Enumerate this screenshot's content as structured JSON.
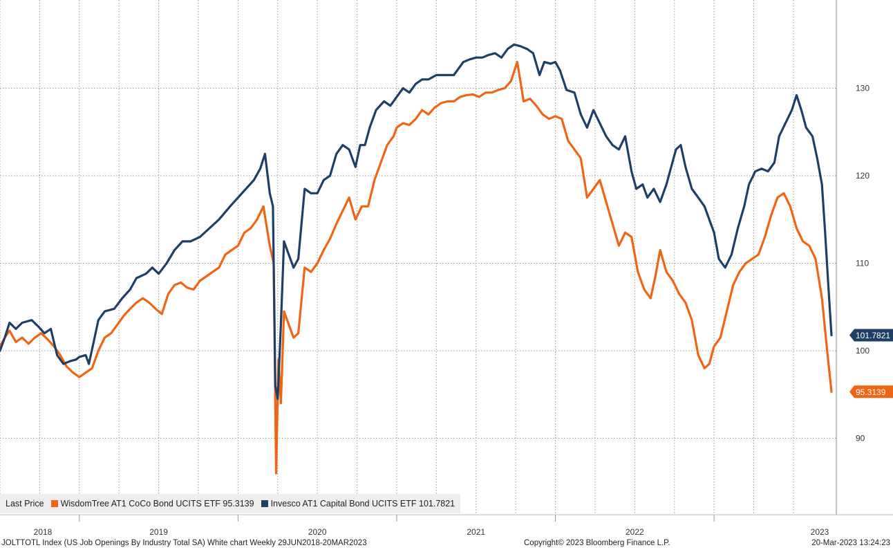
{
  "chart_data": {
    "type": "line",
    "x_range": [
      "2018-06-29",
      "2023-03-20"
    ],
    "ylim": [
      82,
      141
    ],
    "y_ticks": [
      90,
      100,
      110,
      120,
      130
    ],
    "x_year_labels": [
      "2018",
      "2019",
      "2020",
      "2021",
      "2022",
      "2023"
    ],
    "series": [
      {
        "name": "Invesco AT1 Capital Bond UCITS ETF",
        "color": "#1e3f66",
        "last_label": "101.7821",
        "points": [
          [
            2018.5,
            100.0
          ],
          [
            2018.53,
            101.5
          ],
          [
            2018.56,
            103.2
          ],
          [
            2018.6,
            102.5
          ],
          [
            2018.64,
            103.2
          ],
          [
            2018.7,
            103.5
          ],
          [
            2018.74,
            102.8
          ],
          [
            2018.78,
            102.0
          ],
          [
            2018.82,
            102.5
          ],
          [
            2018.86,
            99.5
          ],
          [
            2018.9,
            98.5
          ],
          [
            2018.94,
            98.8
          ],
          [
            2018.98,
            99.0
          ],
          [
            2019.0,
            99.3
          ],
          [
            2019.04,
            99.5
          ],
          [
            2019.06,
            98.5
          ],
          [
            2019.09,
            101.0
          ],
          [
            2019.12,
            103.5
          ],
          [
            2019.16,
            104.5
          ],
          [
            2019.22,
            104.8
          ],
          [
            2019.27,
            106.0
          ],
          [
            2019.32,
            107.0
          ],
          [
            2019.36,
            108.3
          ],
          [
            2019.42,
            108.8
          ],
          [
            2019.46,
            109.5
          ],
          [
            2019.5,
            108.8
          ],
          [
            2019.55,
            110.0
          ],
          [
            2019.6,
            111.5
          ],
          [
            2019.65,
            112.5
          ],
          [
            2019.7,
            112.5
          ],
          [
            2019.76,
            113.0
          ],
          [
            2019.82,
            114.0
          ],
          [
            2019.88,
            115.0
          ],
          [
            2019.95,
            116.5
          ],
          [
            2020.0,
            117.5
          ],
          [
            2020.05,
            118.5
          ],
          [
            2020.1,
            119.5
          ],
          [
            2020.14,
            120.8
          ],
          [
            2020.17,
            122.5
          ],
          [
            2020.2,
            118.0
          ],
          [
            2020.22,
            116.5
          ],
          [
            2020.235,
            96.0
          ],
          [
            2020.25,
            94.5
          ],
          [
            2020.27,
            103.0
          ],
          [
            2020.29,
            112.5
          ],
          [
            2020.32,
            111.0
          ],
          [
            2020.35,
            109.5
          ],
          [
            2020.38,
            110.5
          ],
          [
            2020.42,
            118.5
          ],
          [
            2020.46,
            118.0
          ],
          [
            2020.5,
            118.0
          ],
          [
            2020.54,
            119.5
          ],
          [
            2020.58,
            120.0
          ],
          [
            2020.62,
            122.5
          ],
          [
            2020.66,
            123.5
          ],
          [
            2020.7,
            123.0
          ],
          [
            2020.74,
            121.0
          ],
          [
            2020.77,
            123.5
          ],
          [
            2020.8,
            123.5
          ],
          [
            2020.83,
            125.5
          ],
          [
            2020.87,
            127.5
          ],
          [
            2020.92,
            128.5
          ],
          [
            2020.96,
            128.0
          ],
          [
            2021.0,
            129.0
          ],
          [
            2021.04,
            130.0
          ],
          [
            2021.08,
            129.5
          ],
          [
            2021.12,
            130.5
          ],
          [
            2021.16,
            131.0
          ],
          [
            2021.2,
            131.0
          ],
          [
            2021.25,
            131.5
          ],
          [
            2021.3,
            131.5
          ],
          [
            2021.36,
            131.5
          ],
          [
            2021.42,
            133.0
          ],
          [
            2021.46,
            133.3
          ],
          [
            2021.5,
            133.5
          ],
          [
            2021.54,
            133.5
          ],
          [
            2021.58,
            133.8
          ],
          [
            2021.62,
            134.0
          ],
          [
            2021.66,
            133.5
          ],
          [
            2021.7,
            134.5
          ],
          [
            2021.74,
            135.0
          ],
          [
            2021.78,
            134.8
          ],
          [
            2021.82,
            134.5
          ],
          [
            2021.86,
            134.0
          ],
          [
            2021.9,
            131.5
          ],
          [
            2021.93,
            133.0
          ],
          [
            2021.97,
            132.8
          ],
          [
            2022.0,
            133.0
          ],
          [
            2022.03,
            132.0
          ],
          [
            2022.07,
            129.8
          ],
          [
            2022.12,
            129.5
          ],
          [
            2022.16,
            127.0
          ],
          [
            2022.2,
            125.5
          ],
          [
            2022.24,
            127.5
          ],
          [
            2022.28,
            126.0
          ],
          [
            2022.32,
            124.5
          ],
          [
            2022.36,
            123.5
          ],
          [
            2022.4,
            123.0
          ],
          [
            2022.44,
            124.5
          ],
          [
            2022.48,
            120.5
          ],
          [
            2022.51,
            118.5
          ],
          [
            2022.55,
            119.0
          ],
          [
            2022.58,
            117.5
          ],
          [
            2022.62,
            118.5
          ],
          [
            2022.66,
            117.0
          ],
          [
            2022.7,
            119.0
          ],
          [
            2022.73,
            121.0
          ],
          [
            2022.76,
            123.0
          ],
          [
            2022.79,
            123.5
          ],
          [
            2022.82,
            121.0
          ],
          [
            2022.86,
            118.5
          ],
          [
            2022.9,
            117.5
          ],
          [
            2022.94,
            116.5
          ],
          [
            2022.97,
            115.0
          ],
          [
            2023.0,
            113.5
          ],
          [
            2023.03,
            110.5
          ],
          [
            2023.07,
            109.5
          ],
          [
            2023.11,
            111.0
          ],
          [
            2023.15,
            114.0
          ],
          [
            2023.19,
            116.5
          ],
          [
            2023.22,
            119.0
          ],
          [
            2023.26,
            120.5
          ],
          [
            2023.3,
            120.8
          ],
          [
            2023.34,
            120.5
          ],
          [
            2023.38,
            121.5
          ],
          [
            2023.41,
            124.5
          ],
          [
            2023.45,
            126.0
          ],
          [
            2023.49,
            127.5
          ],
          [
            2023.52,
            129.2
          ],
          [
            2023.55,
            127.5
          ],
          [
            2023.58,
            125.5
          ],
          [
            2023.62,
            124.5
          ],
          [
            2023.65,
            122.0
          ],
          [
            2023.68,
            119.0
          ],
          [
            2023.7,
            113.5
          ],
          [
            2023.72,
            107.5
          ],
          [
            2023.74,
            101.7821
          ]
        ]
      },
      {
        "name": "WisdomTree AT1 CoCo Bond UCITS ETF",
        "color": "#f06414",
        "last_label": "95.3139",
        "points": [
          [
            2018.5,
            100.5
          ],
          [
            2018.53,
            101.5
          ],
          [
            2018.56,
            102.3
          ],
          [
            2018.6,
            101.0
          ],
          [
            2018.64,
            101.5
          ],
          [
            2018.68,
            100.8
          ],
          [
            2018.72,
            101.5
          ],
          [
            2018.76,
            102.0
          ],
          [
            2018.8,
            101.3
          ],
          [
            2018.84,
            100.5
          ],
          [
            2018.88,
            99.5
          ],
          [
            2018.92,
            98.2
          ],
          [
            2018.96,
            97.5
          ],
          [
            2019.0,
            97.0
          ],
          [
            2019.04,
            97.5
          ],
          [
            2019.08,
            98.0
          ],
          [
            2019.12,
            100.0
          ],
          [
            2019.16,
            101.5
          ],
          [
            2019.2,
            102.0
          ],
          [
            2019.24,
            103.0
          ],
          [
            2019.28,
            104.0
          ],
          [
            2019.32,
            104.8
          ],
          [
            2019.36,
            105.5
          ],
          [
            2019.4,
            106.0
          ],
          [
            2019.44,
            105.5
          ],
          [
            2019.48,
            104.8
          ],
          [
            2019.52,
            104.2
          ],
          [
            2019.56,
            106.5
          ],
          [
            2019.6,
            107.5
          ],
          [
            2019.64,
            107.8
          ],
          [
            2019.68,
            107.2
          ],
          [
            2019.72,
            107.0
          ],
          [
            2019.76,
            108.0
          ],
          [
            2019.8,
            108.5
          ],
          [
            2019.84,
            109.0
          ],
          [
            2019.88,
            109.5
          ],
          [
            2019.92,
            111.0
          ],
          [
            2019.96,
            111.5
          ],
          [
            2020.0,
            112.0
          ],
          [
            2020.04,
            113.5
          ],
          [
            2020.08,
            114.0
          ],
          [
            2020.12,
            115.0
          ],
          [
            2020.16,
            116.5
          ],
          [
            2020.2,
            112.0
          ],
          [
            2020.225,
            110.0
          ],
          [
            2020.24,
            86.0
          ],
          [
            2020.255,
            99.0
          ],
          [
            2020.27,
            94.0
          ],
          [
            2020.29,
            104.5
          ],
          [
            2020.32,
            103.0
          ],
          [
            2020.35,
            101.5
          ],
          [
            2020.38,
            102.0
          ],
          [
            2020.42,
            109.5
          ],
          [
            2020.46,
            109.0
          ],
          [
            2020.5,
            110.0
          ],
          [
            2020.54,
            111.5
          ],
          [
            2020.58,
            112.8
          ],
          [
            2020.62,
            114.5
          ],
          [
            2020.66,
            116.0
          ],
          [
            2020.7,
            117.5
          ],
          [
            2020.74,
            115.0
          ],
          [
            2020.78,
            116.5
          ],
          [
            2020.82,
            116.5
          ],
          [
            2020.86,
            119.5
          ],
          [
            2020.9,
            121.5
          ],
          [
            2020.94,
            123.5
          ],
          [
            2020.98,
            124.5
          ],
          [
            2021.0,
            125.5
          ],
          [
            2021.04,
            126.0
          ],
          [
            2021.08,
            125.8
          ],
          [
            2021.12,
            126.5
          ],
          [
            2021.16,
            127.5
          ],
          [
            2021.2,
            127.0
          ],
          [
            2021.24,
            127.8
          ],
          [
            2021.28,
            128.3
          ],
          [
            2021.32,
            128.5
          ],
          [
            2021.36,
            128.5
          ],
          [
            2021.4,
            129.0
          ],
          [
            2021.44,
            129.2
          ],
          [
            2021.48,
            129.3
          ],
          [
            2021.52,
            129.0
          ],
          [
            2021.56,
            129.5
          ],
          [
            2021.6,
            129.5
          ],
          [
            2021.64,
            129.8
          ],
          [
            2021.68,
            130.0
          ],
          [
            2021.72,
            130.8
          ],
          [
            2021.76,
            133.0
          ],
          [
            2021.8,
            128.5
          ],
          [
            2021.84,
            128.8
          ],
          [
            2021.88,
            128.0
          ],
          [
            2021.92,
            127.0
          ],
          [
            2021.96,
            126.5
          ],
          [
            2022.0,
            126.8
          ],
          [
            2022.04,
            126.5
          ],
          [
            2022.08,
            124.0
          ],
          [
            2022.12,
            123.0
          ],
          [
            2022.16,
            122.0
          ],
          [
            2022.2,
            117.5
          ],
          [
            2022.24,
            118.5
          ],
          [
            2022.28,
            119.5
          ],
          [
            2022.32,
            117.0
          ],
          [
            2022.36,
            114.5
          ],
          [
            2022.4,
            112.0
          ],
          [
            2022.44,
            113.5
          ],
          [
            2022.48,
            113.0
          ],
          [
            2022.52,
            109.0
          ],
          [
            2022.56,
            107.0
          ],
          [
            2022.6,
            106.0
          ],
          [
            2022.63,
            108.5
          ],
          [
            2022.66,
            111.5
          ],
          [
            2022.7,
            109.0
          ],
          [
            2022.74,
            108.0
          ],
          [
            2022.78,
            106.5
          ],
          [
            2022.82,
            105.5
          ],
          [
            2022.86,
            103.5
          ],
          [
            2022.9,
            99.5
          ],
          [
            2022.94,
            98.0
          ],
          [
            2022.97,
            98.5
          ],
          [
            2023.0,
            100.5
          ],
          [
            2023.04,
            101.5
          ],
          [
            2023.08,
            104.5
          ],
          [
            2023.12,
            107.5
          ],
          [
            2023.16,
            109.0
          ],
          [
            2023.2,
            110.0
          ],
          [
            2023.24,
            110.5
          ],
          [
            2023.28,
            111.0
          ],
          [
            2023.32,
            113.0
          ],
          [
            2023.36,
            115.5
          ],
          [
            2023.4,
            117.5
          ],
          [
            2023.44,
            118.0
          ],
          [
            2023.48,
            116.5
          ],
          [
            2023.52,
            114.0
          ],
          [
            2023.56,
            112.5
          ],
          [
            2023.6,
            112.0
          ],
          [
            2023.64,
            110.5
          ],
          [
            2023.68,
            106.0
          ],
          [
            2023.71,
            100.5
          ],
          [
            2023.74,
            95.3139
          ]
        ]
      }
    ]
  },
  "legend": {
    "prefix": "Last Price",
    "items": [
      {
        "text": "WisdomTree AT1 CoCo Bond UCITS ETF 95.3139",
        "color": "#f06414"
      },
      {
        "text": "Invesco AT1 Capital Bond UCITS ETF 101.7821",
        "color": "#1e3f66"
      }
    ]
  },
  "footer": {
    "left": "JOLTTOTL Index (US Job Openings By Industry Total SA) White chart  Weekly 29JUN2018-20MAR2023",
    "center": "Copyright© 2023 Bloomberg Finance L.P.",
    "right": "20-Mar-2023 13:24:23"
  }
}
